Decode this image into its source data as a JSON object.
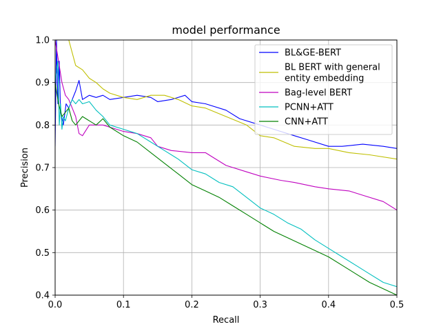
{
  "chart_data": {
    "type": "line",
    "title": "model performance",
    "xlabel": "Recall",
    "ylabel": "Precision",
    "xlim": [
      0.0,
      0.5
    ],
    "ylim": [
      0.4,
      1.0
    ],
    "xticks": [
      "0.0",
      "0.1",
      "0.2",
      "0.3",
      "0.4",
      "0.5"
    ],
    "yticks": [
      "0.4",
      "0.5",
      "0.6",
      "0.7",
      "0.8",
      "0.9",
      "1.0"
    ],
    "grid": true,
    "legend_position": "top-right",
    "series": [
      {
        "name": "BL&GE-BERT",
        "color": "#0000ff",
        "x": [
          0.0,
          0.002,
          0.004,
          0.006,
          0.008,
          0.012,
          0.016,
          0.02,
          0.025,
          0.03,
          0.035,
          0.04,
          0.05,
          0.06,
          0.07,
          0.08,
          0.1,
          0.12,
          0.14,
          0.15,
          0.17,
          0.19,
          0.2,
          0.22,
          0.25,
          0.27,
          0.3,
          0.32,
          0.35,
          0.37,
          0.4,
          0.42,
          0.45,
          0.48,
          0.5
        ],
        "y": [
          0.75,
          1.0,
          0.85,
          0.95,
          0.83,
          0.8,
          0.85,
          0.84,
          0.86,
          0.88,
          0.905,
          0.86,
          0.87,
          0.865,
          0.87,
          0.86,
          0.865,
          0.87,
          0.865,
          0.855,
          0.86,
          0.87,
          0.855,
          0.85,
          0.835,
          0.815,
          0.8,
          0.79,
          0.775,
          0.765,
          0.75,
          0.75,
          0.755,
          0.75,
          0.745
        ]
      },
      {
        "name": "BL BERT with general entity embedding",
        "color": "#bfbf00",
        "x": [
          0.0,
          0.005,
          0.01,
          0.015,
          0.02,
          0.025,
          0.03,
          0.04,
          0.05,
          0.06,
          0.07,
          0.08,
          0.1,
          0.12,
          0.14,
          0.16,
          0.18,
          0.2,
          0.22,
          0.25,
          0.28,
          0.3,
          0.32,
          0.35,
          0.38,
          0.4,
          0.43,
          0.46,
          0.5
        ],
        "y": [
          1.0,
          1.0,
          1.0,
          1.0,
          1.0,
          0.97,
          0.94,
          0.93,
          0.91,
          0.9,
          0.885,
          0.875,
          0.865,
          0.86,
          0.87,
          0.87,
          0.86,
          0.845,
          0.84,
          0.82,
          0.8,
          0.775,
          0.77,
          0.75,
          0.745,
          0.745,
          0.735,
          0.73,
          0.72
        ]
      },
      {
        "name": "Bag-level BERT",
        "color": "#bf00bf",
        "x": [
          0.0,
          0.005,
          0.01,
          0.015,
          0.02,
          0.025,
          0.03,
          0.035,
          0.04,
          0.05,
          0.07,
          0.09,
          0.1,
          0.12,
          0.14,
          0.15,
          0.17,
          0.2,
          0.22,
          0.23,
          0.25,
          0.28,
          0.3,
          0.33,
          0.35,
          0.38,
          0.4,
          0.43,
          0.45,
          0.48,
          0.5
        ],
        "y": [
          1.0,
          0.95,
          0.9,
          0.87,
          0.86,
          0.84,
          0.82,
          0.78,
          0.775,
          0.8,
          0.8,
          0.79,
          0.785,
          0.78,
          0.77,
          0.75,
          0.74,
          0.735,
          0.735,
          0.725,
          0.705,
          0.69,
          0.68,
          0.67,
          0.665,
          0.655,
          0.65,
          0.645,
          0.635,
          0.62,
          0.6
        ]
      },
      {
        "name": "PCNN+ATT",
        "color": "#00bfbf",
        "x": [
          0.0,
          0.004,
          0.006,
          0.008,
          0.01,
          0.012,
          0.015,
          0.02,
          0.025,
          0.03,
          0.035,
          0.04,
          0.05,
          0.06,
          0.07,
          0.08,
          0.1,
          0.12,
          0.14,
          0.16,
          0.18,
          0.2,
          0.22,
          0.24,
          0.26,
          0.28,
          0.3,
          0.32,
          0.34,
          0.36,
          0.38,
          0.4,
          0.42,
          0.44,
          0.46,
          0.48,
          0.5
        ],
        "y": [
          0.9,
          0.95,
          0.8,
          0.85,
          0.79,
          0.82,
          0.81,
          0.84,
          0.86,
          0.85,
          0.86,
          0.85,
          0.855,
          0.835,
          0.82,
          0.8,
          0.79,
          0.78,
          0.76,
          0.74,
          0.72,
          0.695,
          0.685,
          0.665,
          0.655,
          0.63,
          0.605,
          0.59,
          0.57,
          0.555,
          0.53,
          0.51,
          0.49,
          0.47,
          0.45,
          0.43,
          0.42
        ]
      },
      {
        "name": "CNN+ATT",
        "color": "#008000",
        "x": [
          0.0,
          0.005,
          0.01,
          0.015,
          0.02,
          0.025,
          0.03,
          0.04,
          0.05,
          0.06,
          0.07,
          0.08,
          0.1,
          0.12,
          0.14,
          0.16,
          0.18,
          0.2,
          0.22,
          0.24,
          0.26,
          0.28,
          0.3,
          0.32,
          0.34,
          0.36,
          0.38,
          0.4,
          0.42,
          0.44,
          0.46,
          0.48,
          0.5
        ],
        "y": [
          0.9,
          0.85,
          0.82,
          0.83,
          0.84,
          0.81,
          0.8,
          0.82,
          0.81,
          0.8,
          0.815,
          0.795,
          0.775,
          0.76,
          0.735,
          0.71,
          0.685,
          0.66,
          0.645,
          0.63,
          0.61,
          0.59,
          0.57,
          0.55,
          0.535,
          0.52,
          0.505,
          0.49,
          0.47,
          0.45,
          0.43,
          0.415,
          0.4
        ]
      }
    ]
  }
}
